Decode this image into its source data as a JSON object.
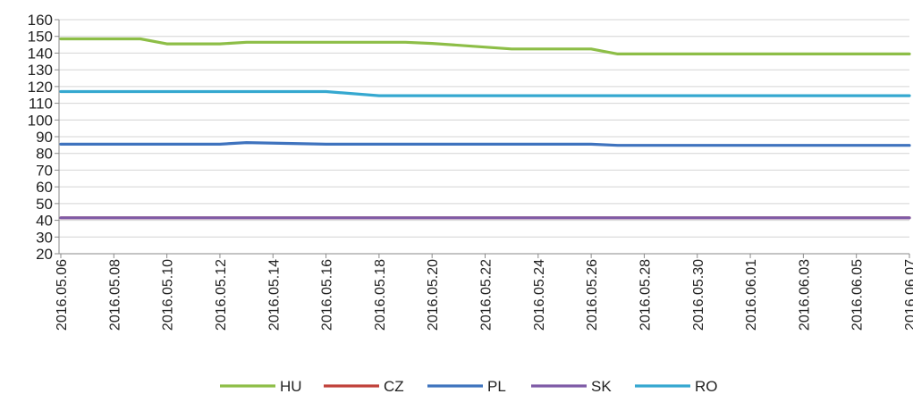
{
  "chart_data": {
    "type": "line",
    "title": "",
    "xlabel": "",
    "ylabel": "",
    "ylim": [
      20,
      160
    ],
    "y_ticks": [
      20,
      30,
      40,
      50,
      60,
      70,
      80,
      90,
      100,
      110,
      120,
      130,
      140,
      150,
      160
    ],
    "grid": true,
    "legend_position": "bottom",
    "x_tick_labels": [
      "2016.05.06",
      "2016.05.08",
      "2016.05.10",
      "2016.05.12",
      "2016.05.14",
      "2016.05.16",
      "2016.05.18",
      "2016.05.20",
      "2016.05.22",
      "2016.05.24",
      "2016.05.26",
      "2016.05.28",
      "2016.05.30",
      "2016.06.01",
      "2016.06.03",
      "2016.06.05",
      "2016.06.07"
    ],
    "x": [
      "2016.05.06",
      "2016.05.09",
      "2016.05.10",
      "2016.05.12",
      "2016.05.13",
      "2016.05.16",
      "2016.05.18",
      "2016.05.19",
      "2016.05.20",
      "2016.05.23",
      "2016.05.26",
      "2016.05.27",
      "2016.05.30",
      "2016.06.03",
      "2016.06.07"
    ],
    "series": [
      {
        "name": "HU",
        "color": "#8DBE47",
        "values": [
          148.5,
          148.5,
          145.5,
          145.5,
          146.5,
          146.5,
          146.5,
          146.5,
          145.8,
          142.5,
          142.5,
          139.5,
          139.5,
          139.5,
          139.5
        ]
      },
      {
        "name": "CZ",
        "color": "#C0413A",
        "values": [
          41.5,
          41.5,
          41.5,
          41.5,
          41.5,
          41.5,
          41.5,
          41.5,
          41.5,
          41.5,
          41.5,
          41.5,
          41.5,
          41.5,
          41.5
        ]
      },
      {
        "name": "PL",
        "color": "#3F73BE",
        "values": [
          85.5,
          85.5,
          85.5,
          85.5,
          86.5,
          85.5,
          85.5,
          85.5,
          85.5,
          85.5,
          85.5,
          84.8,
          84.8,
          84.8,
          84.8
        ]
      },
      {
        "name": "SK",
        "color": "#7E5AA6",
        "values": [
          41.5,
          41.5,
          41.5,
          41.5,
          41.5,
          41.5,
          41.5,
          41.5,
          41.5,
          41.5,
          41.5,
          41.5,
          41.5,
          41.5,
          41.5
        ]
      },
      {
        "name": "RO",
        "color": "#35A8D0",
        "values": [
          117.0,
          117.0,
          117.0,
          117.0,
          117.0,
          117.0,
          114.5,
          114.5,
          114.5,
          114.5,
          114.5,
          114.5,
          114.5,
          114.5,
          114.5
        ]
      }
    ]
  }
}
